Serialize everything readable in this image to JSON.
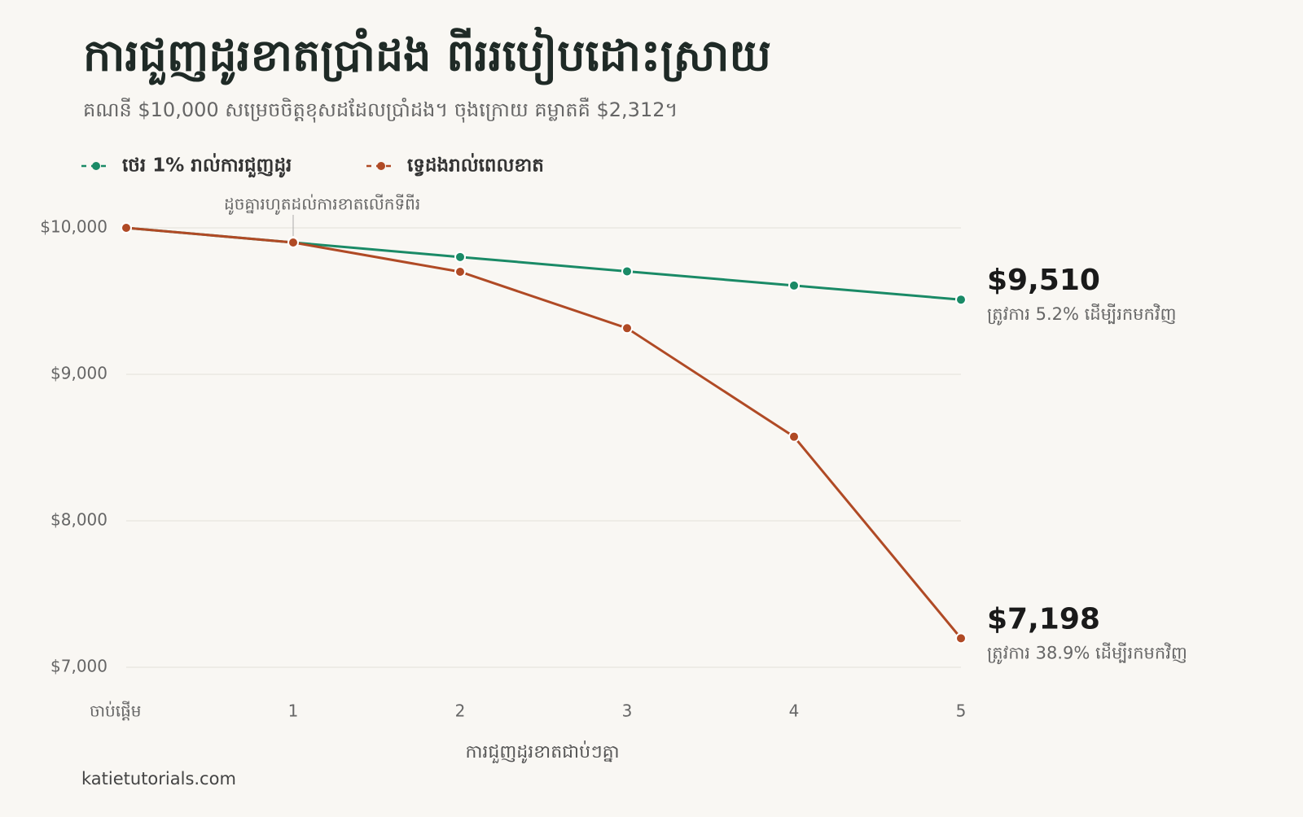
{
  "chart_data": {
    "type": "line",
    "title": "ការជួញដូរខាតប្រាំដង ពីររបៀបដោះស្រាយ",
    "subtitle": "គណនី $10,000 សម្រេចចិត្តខុសដដែលប្រាំដង។ ចុងក្រោយ គម្លាតគឺ $2,312។",
    "x_label": "ការជួញដូរខាតជាប់ៗគ្នា",
    "source": "katietutorials.com",
    "annotation": "ដូចគ្នារហូតដល់ការខាតលើកទីពីរ",
    "categories": [
      "ចាប់ផ្តើម",
      "1",
      "2",
      "3",
      "4",
      "5"
    ],
    "series": [
      {
        "name": "ថេរ 1% រាល់ការជួញដូរ",
        "color": "#1a8a66",
        "values": [
          10000,
          9900,
          9801,
          9703,
          9606,
          9510
        ],
        "value_labels": [
          null,
          null,
          null,
          null,
          null,
          "$9,510"
        ],
        "end_note": "ត្រូវការ 5.2% ដើម្បីរកមកវិញ"
      },
      {
        "name": "ទ្វេដងរាល់ពេលខាត",
        "color": "#b04a25",
        "values": [
          10000,
          9900,
          9700,
          9315,
          8574,
          7198
        ],
        "value_labels": [
          null,
          null,
          null,
          null,
          null,
          "$7,198"
        ],
        "end_note": "ត្រូវការ 38.9% ដើម្បីរកមកវិញ"
      }
    ],
    "ylim": [
      7000,
      10000
    ],
    "yticks": [
      {
        "value": 7000,
        "label": "$7,000"
      },
      {
        "value": 8000,
        "label": "$8,000"
      },
      {
        "value": 9000,
        "label": "$9,000"
      },
      {
        "value": 10000,
        "label": "$10,000"
      }
    ],
    "grid": true
  }
}
